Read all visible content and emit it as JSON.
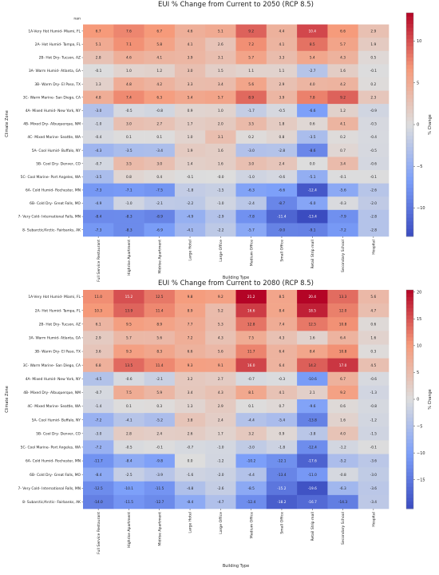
{
  "chart_data": [
    {
      "type": "heatmap",
      "title": "EUI % Change from Current to 2050 (RCP 8.5)",
      "xlabel": "Building Type",
      "ylabel": "Climate Zone",
      "colorbar_label": "% Change",
      "colorbar_ticks": [
        -10,
        -5,
        0,
        5,
        10
      ],
      "vmin": -13.4,
      "vmax": 13.4,
      "extra_row_label": "nan",
      "categories": [
        "Full Service Restaurant",
        "Highrise Apartment",
        "Midrise Apartment",
        "Large Hotel",
        "Large Office",
        "Medium Office",
        "Small Office",
        "Retail Strip mall",
        "Secondary School",
        "Hospital"
      ],
      "rows": [
        "1A-Very Hot Humid- Miami, FL",
        "2A- Hot Humid- Tampa, FL",
        "2B- Hot Dry- Tucson, AZ",
        "3A- Warm Humid- Atlanta, GA",
        "3B- Warm Dry- El Paso, TX",
        "3C- Warm Marine- San Diego, CA",
        "4A- Mixed Humid- New York, NY",
        "4B- Mixed Dry- Albuquerque, NM",
        "4C- Mixed Marine- Seattle, WA",
        "5A- Cool Humid- Buffalo, NY",
        "5B- Cool Dry- Denver, CO",
        "5C- Cool Marine- Port Angeles, WA",
        "6A- Cold Humid- Rochester, MN",
        "6B- Cold Dry- Great Falls, MO",
        "7- Very Cold- International Falls, MN",
        "8- Subarctic/Arctic- Fairbanks, AK"
      ],
      "values": [
        [
          6.7,
          7.6,
          6.7,
          4.6,
          5.1,
          9.2,
          4.4,
          10.4,
          6.6,
          2.9
        ],
        [
          5.1,
          7.1,
          5.8,
          4.1,
          2.6,
          7.2,
          4.1,
          8.5,
          5.7,
          1.9
        ],
        [
          2.8,
          4.6,
          4.1,
          3.9,
          3.1,
          5.7,
          3.3,
          5.4,
          4.3,
          0.5
        ],
        [
          -0.1,
          1.0,
          1.2,
          3.0,
          1.5,
          1.1,
          1.1,
          -2.7,
          1.6,
          -0.1
        ],
        [
          1.3,
          4.8,
          4.2,
          3.3,
          3.4,
          5.6,
          2.9,
          4.0,
          4.2,
          0.2
        ],
        [
          4.8,
          7.4,
          6.3,
          5.4,
          5.7,
          8.9,
          3.9,
          7.8,
          9.2,
          2.3
        ],
        [
          -3.0,
          -0.5,
          -0.8,
          0.9,
          1.0,
          -1.7,
          -0.5,
          -6.6,
          1.2,
          -0.9
        ],
        [
          -1.0,
          3.0,
          2.7,
          1.7,
          2.0,
          3.5,
          1.8,
          0.6,
          4.1,
          -0.5
        ],
        [
          -0.4,
          0.1,
          0.1,
          1.0,
          3.1,
          0.2,
          0.8,
          -3.5,
          0.2,
          -0.4
        ],
        [
          -4.3,
          -3.5,
          -3.4,
          1.9,
          1.6,
          -3.0,
          -2.8,
          -8.6,
          0.7,
          -0.5
        ],
        [
          -0.7,
          3.5,
          3.0,
          1.4,
          1.6,
          3.0,
          2.4,
          0.0,
          3.4,
          -0.6
        ],
        [
          -3.5,
          0.8,
          0.4,
          -0.1,
          -0.0,
          -1.0,
          -0.6,
          -5.1,
          -0.1,
          -0.1
        ],
        [
          -7.3,
          -7.1,
          -7.5,
          -1.8,
          -1.5,
          -6.3,
          -6.6,
          -12.4,
          -5.6,
          -2.6
        ],
        [
          -4.9,
          -1.0,
          -2.1,
          -2.2,
          -1.0,
          -2.4,
          -8.7,
          -6.0,
          -0.3,
          -2.0
        ],
        [
          -8.4,
          -8.3,
          -8.9,
          -4.9,
          -2.9,
          -7.8,
          -11.4,
          -13.4,
          -7.9,
          -2.8
        ],
        [
          -7.3,
          -8.3,
          -6.9,
          -4.1,
          -2.2,
          -5.7,
          -9.0,
          -9.1,
          -7.2,
          -2.8
        ]
      ]
    },
    {
      "type": "heatmap",
      "title": "EUI % Change from Current to 2080 (RCP 8.5)",
      "xlabel": "Building Type",
      "ylabel": "Climate Zone",
      "colorbar_label": "% Change",
      "colorbar_ticks": [
        -15,
        -10,
        -5,
        0,
        5,
        10,
        15,
        20
      ],
      "vmin": -20.4,
      "vmax": 20.4,
      "categories": [
        "Full Service Restaurant",
        "Highrise Apartment",
        "Midrise Apartment",
        "Large Hotel",
        "Large Office",
        "Medium Office",
        "Small Office",
        "Retail Strip mall",
        "Secondary School",
        "Hospital"
      ],
      "rows": [
        "1A-Very Hot Humid- Miami, FL",
        "2A- Hot Humid- Tampa, FL",
        "2B- Hot Dry- Tucson, AZ",
        "3A- Warm Humid- Atlanta, GA",
        "3B- Warm Dry- El Paso, TX",
        "3C- Warm Marine- San Diego, CA",
        "4A- Mixed Humid- New York, NY",
        "4B- Mixed Dry- Albuquerque, NM",
        "4C- Mixed Marine- Seattle, WA",
        "5A- Cool Humid- Buffalo, NY",
        "5B- Cool Dry- Denver, CO",
        "5C- Cool Marine- Port Angeles, WA",
        "6A- Cold Humid- Rochester, MN",
        "6B- Cold Dry- Great Falls, MO",
        "7- Very Cold- International Falls, MN",
        "8- Subarctic/Arctic- Fairbanks, AK"
      ],
      "values": [
        [
          11.0,
          15.2,
          12.5,
          9.8,
          9.2,
          21.2,
          8.5,
          20.4,
          13.3,
          5.6
        ],
        [
          10.3,
          13.9,
          11.4,
          8.9,
          5.2,
          16.6,
          8.4,
          18.5,
          12.0,
          4.7
        ],
        [
          6.1,
          9.5,
          8.9,
          7.7,
          5.3,
          12.8,
          7.4,
          12.5,
          10.8,
          0.6
        ],
        [
          2.9,
          5.7,
          5.6,
          7.2,
          4.3,
          7.5,
          4.3,
          1.6,
          6.4,
          1.6
        ],
        [
          3.6,
          9.3,
          8.3,
          6.6,
          5.6,
          11.7,
          6.4,
          8.4,
          10.8,
          0.3
        ],
        [
          6.8,
          13.5,
          11.4,
          9.3,
          9.1,
          16.0,
          6.4,
          14.2,
          17.0,
          4.5
        ],
        [
          -4.5,
          -0.6,
          -2.1,
          3.2,
          2.7,
          -0.7,
          -0.3,
          -10.6,
          6.7,
          -0.6
        ],
        [
          -0.7,
          7.5,
          5.9,
          3.4,
          4.3,
          8.1,
          4.1,
          2.1,
          9.2,
          -1.3
        ],
        [
          -1.4,
          0.1,
          0.3,
          1.3,
          2.9,
          0.1,
          0.7,
          -9.6,
          0.6,
          -0.8
        ],
        [
          -7.2,
          -4.1,
          -5.2,
          3.8,
          2.4,
          -4.4,
          -5.4,
          -13.8,
          1.6,
          -1.2
        ],
        [
          -3.0,
          2.8,
          2.4,
          2.6,
          1.7,
          3.2,
          0.9,
          -3.8,
          4.0,
          -1.5
        ],
        [
          -7.2,
          -0.5,
          -0.1,
          -0.7,
          -1.0,
          -3.0,
          -1.8,
          -12.4,
          -1.2,
          -0.1
        ],
        [
          -11.7,
          -8.4,
          -9.8,
          0.0,
          -1.2,
          -10.2,
          -12.1,
          -17.6,
          -5.2,
          -3.6
        ],
        [
          -8.4,
          -2.5,
          -3.9,
          -1.6,
          -2.0,
          -4.4,
          -13.4,
          -11.0,
          -0.8,
          -3.0
        ],
        [
          -12.5,
          -10.1,
          -11.5,
          -4.8,
          -2.6,
          -8.5,
          -15.2,
          -19.6,
          -6.3,
          -3.6
        ],
        [
          -14.0,
          -11.5,
          -12.7,
          -8.4,
          -4.7,
          -12.4,
          -18.2,
          -16.7,
          -14.3,
          -3.4
        ]
      ]
    }
  ]
}
